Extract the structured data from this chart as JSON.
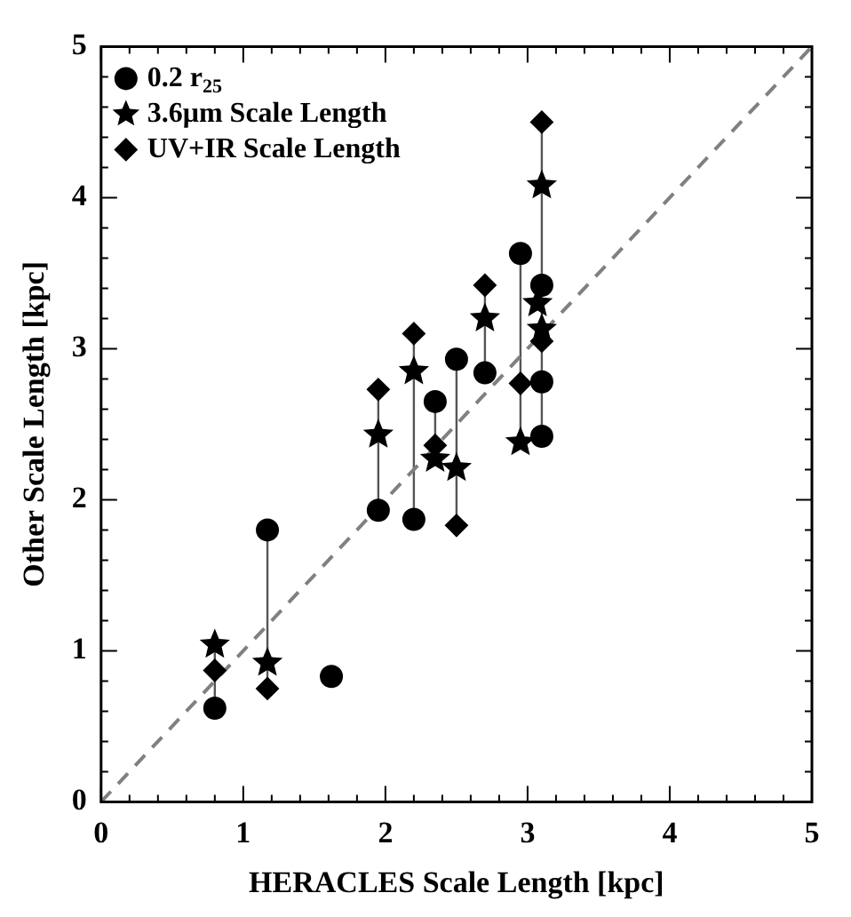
{
  "chart_data": {
    "type": "scatter",
    "xlabel": "HERACLES Scale Length [kpc]",
    "ylabel": "Other Scale Length [kpc]",
    "xlim": [
      0,
      5
    ],
    "xticks": [
      0,
      1,
      2,
      3,
      4,
      5
    ],
    "ylim": [
      0,
      5
    ],
    "yticks": [
      0,
      1,
      2,
      3,
      4,
      5
    ],
    "grid": false,
    "legend": "top left",
    "series": [
      {
        "name": "0.2 r$_{25}$",
        "color": "#000000",
        "marker": "circle",
        "x": [
          0.8,
          1.17,
          1.62,
          1.95,
          2.2,
          2.35,
          2.5,
          2.7,
          2.95,
          3.1,
          3.1,
          3.1
        ],
        "values": [
          0.62,
          1.8,
          0.83,
          1.93,
          1.87,
          2.65,
          2.93,
          2.84,
          3.63,
          3.42,
          2.78,
          2.42
        ]
      },
      {
        "name": "3.6μm Scale Length",
        "color": "#000000",
        "marker": "star",
        "x": [
          0.8,
          1.17,
          1.95,
          2.2,
          2.35,
          2.5,
          2.7,
          2.95,
          3.07,
          3.1,
          3.1
        ],
        "values": [
          1.04,
          0.92,
          2.43,
          2.85,
          2.27,
          2.21,
          3.2,
          2.38,
          3.3,
          3.13,
          4.08
        ]
      },
      {
        "name": "UV+IR Scale Length",
        "color": "#000000",
        "marker": "diamond",
        "x": [
          0.8,
          1.17,
          1.95,
          2.2,
          2.35,
          2.5,
          2.7,
          2.95,
          3.1,
          3.1
        ],
        "values": [
          0.87,
          0.75,
          2.73,
          3.1,
          2.36,
          1.83,
          3.42,
          2.77,
          3.05,
          4.5
        ]
      },
      {
        "type": "line",
        "color": "#808080",
        "line_style": "dashed",
        "marker": "none",
        "x": [
          0,
          5
        ],
        "values": [
          0,
          5
        ]
      },
      {
        "type": "line",
        "color": "#555555",
        "line_style": "solid",
        "marker": "none",
        "x": [
          0.8,
          0.8
        ],
        "values": [
          0.62,
          1.04
        ]
      },
      {
        "type": "line",
        "color": "#555555",
        "line_style": "solid",
        "marker": "none",
        "x": [
          1.17,
          1.17
        ],
        "values": [
          0.75,
          1.8
        ]
      },
      {
        "type": "line",
        "color": "#555555",
        "line_style": "solid",
        "marker": "none",
        "x": [
          1.95,
          1.95
        ],
        "values": [
          1.93,
          2.73
        ]
      },
      {
        "type": "line",
        "color": "#555555",
        "line_style": "solid",
        "marker": "none",
        "x": [
          2.2,
          2.2
        ],
        "values": [
          1.87,
          3.1
        ]
      },
      {
        "type": "line",
        "color": "#555555",
        "line_style": "solid",
        "marker": "none",
        "x": [
          2.35,
          2.35
        ],
        "values": [
          2.27,
          2.65
        ]
      },
      {
        "type": "line",
        "color": "#555555",
        "line_style": "solid",
        "marker": "none",
        "x": [
          2.5,
          2.5
        ],
        "values": [
          1.83,
          2.93
        ]
      },
      {
        "type": "line",
        "color": "#555555",
        "line_style": "solid",
        "marker": "none",
        "x": [
          2.7,
          2.7
        ],
        "values": [
          2.84,
          3.42
        ]
      },
      {
        "type": "line",
        "color": "#555555",
        "line_style": "solid",
        "marker": "none",
        "x": [
          2.95,
          2.95
        ],
        "values": [
          2.38,
          3.63
        ]
      },
      {
        "type": "line",
        "color": "#555555",
        "line_style": "solid",
        "marker": "none",
        "x": [
          3.1,
          3.1
        ],
        "values": [
          2.42,
          4.5
        ]
      }
    ]
  }
}
